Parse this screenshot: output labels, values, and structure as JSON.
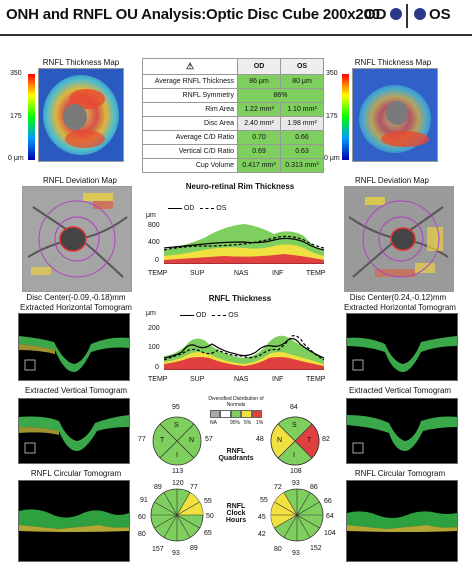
{
  "header": {
    "title": "ONH and RNFL OU Analysis:Optic Disc Cube 200x200",
    "od_label": "OD",
    "os_label": "OS"
  },
  "left": {
    "thickness_map_title": "RNFL Thickness Map",
    "scale_top": "350",
    "scale_mid": "175",
    "scale_bottom": "0 μm",
    "deviation_map_title": "RNFL Deviation Map",
    "disc_center": "Disc Center(-0.09,-0.18)mm",
    "horizontal_tomo_title": "Extracted Horizontal Tomogram",
    "vertical_tomo_title": "Extracted Vertical Tomogram",
    "circular_tomo_title": "RNFL Circular Tomogram"
  },
  "right": {
    "thickness_map_title": "RNFL Thickness Map",
    "scale_top": "350",
    "scale_mid": "175",
    "scale_bottom": "0 μm",
    "deviation_map_title": "RNFL Deviation Map",
    "disc_center": "Disc Center(0.24,-0.12)mm",
    "horizontal_tomo_title": "Extracted Horizontal Tomogram",
    "vertical_tomo_title": "Extracted Vertical Tomogram",
    "circular_tomo_title": "RNFL Circular Tomogram"
  },
  "table": {
    "col_od": "OD",
    "col_os": "OS",
    "rows": [
      {
        "name": "Average RNFL Thickness",
        "od": "86 μm",
        "os": "80 μm"
      },
      {
        "name": "RNFL Symmetry",
        "od": "86%",
        "os": ""
      },
      {
        "name": "Rim Area",
        "od": "1.22 mm²",
        "os": "1.10 mm²"
      },
      {
        "name": "Disc Area",
        "od": "2.40 mm²",
        "os": "1.98 mm²"
      },
      {
        "name": "Average C/D Ratio",
        "od": "0.70",
        "os": "0.66"
      },
      {
        "name": "Vertical C/D Ratio",
        "od": "0.69",
        "os": "0.63"
      },
      {
        "name": "Cup Volume",
        "od": "0.417 mm³",
        "os": "0.313 mm³"
      }
    ]
  },
  "rim_chart": {
    "title": "Neuro-retinal Rim Thickness",
    "unit": "μm",
    "legend_od": "OD",
    "legend_os": "OS",
    "y_ticks": [
      "800",
      "400",
      "0"
    ],
    "x_ticks": [
      "TEMP",
      "SUP",
      "NAS",
      "INF",
      "TEMP"
    ]
  },
  "rnfl_chart": {
    "title": "RNFL Thickness",
    "unit": "μm",
    "legend_od": "OD",
    "legend_os": "OS",
    "y_ticks": [
      "200",
      "100",
      "0"
    ],
    "x_ticks": [
      "TEMP",
      "SUP",
      "NAS",
      "INF",
      "TEMP"
    ]
  },
  "normals_legend": {
    "title": "Diversified Distribution of Normals",
    "labels": [
      "NA",
      "95%",
      "5%",
      "1%"
    ]
  },
  "quadrants": {
    "label_line1": "RNFL",
    "label_line2": "Quadrants",
    "od": {
      "top": "95",
      "left": "77",
      "right": "57",
      "bottom": "113",
      "s": "S",
      "t": "T",
      "n": "N",
      "i": "I"
    },
    "os": {
      "top": "84",
      "left": "48",
      "right": "82",
      "bottom": "108",
      "s": "S",
      "t": "T",
      "n": "N",
      "i": "I"
    }
  },
  "clock": {
    "label_line1": "RNFL",
    "label_line2": "Clock",
    "label_line3": "Hours",
    "od": [
      "120",
      "77",
      "55",
      "50",
      "65",
      "89",
      "93",
      "157",
      "80",
      "60",
      "91",
      "89"
    ],
    "os": [
      "93",
      "86",
      "66",
      "64",
      "104",
      "152",
      "93",
      "80",
      "42",
      "45",
      "55",
      "72"
    ]
  },
  "colors": {
    "normal_green": "#7fcf5f",
    "borderline_yellow": "#f0e040",
    "abnormal_red": "#e04040",
    "od_line": "#000000",
    "os_line": "#000000"
  }
}
